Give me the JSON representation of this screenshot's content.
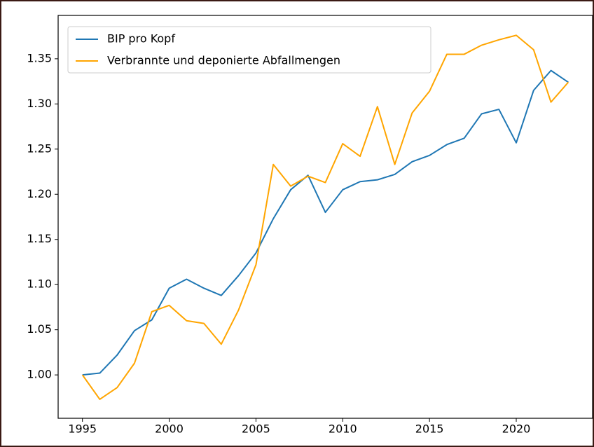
{
  "chart_data": {
    "type": "line",
    "x": [
      1995,
      1996,
      1997,
      1998,
      1999,
      2000,
      2001,
      2002,
      2003,
      2004,
      2005,
      2006,
      2007,
      2008,
      2009,
      2010,
      2011,
      2012,
      2013,
      2014,
      2015,
      2016,
      2017,
      2018,
      2019,
      2020,
      2021,
      2022,
      2023
    ],
    "series": [
      {
        "name": "BIP pro Kopf",
        "color": "#1f77b4",
        "values": [
          1.0,
          1.002,
          1.022,
          1.049,
          1.061,
          1.096,
          1.106,
          1.096,
          1.088,
          1.11,
          1.135,
          1.173,
          1.205,
          1.221,
          1.18,
          1.205,
          1.214,
          1.216,
          1.222,
          1.236,
          1.243,
          1.255,
          1.262,
          1.289,
          1.294,
          1.257,
          1.315,
          1.337,
          1.324
        ]
      },
      {
        "name": "Verbrannte und deponierte Abfallmengen",
        "color": "#ffa500",
        "values": [
          1.0,
          0.973,
          0.986,
          1.013,
          1.07,
          1.077,
          1.06,
          1.057,
          1.034,
          1.072,
          1.122,
          1.233,
          1.209,
          1.22,
          1.213,
          1.256,
          1.242,
          1.297,
          1.233,
          1.29,
          1.314,
          1.355,
          1.355,
          1.365,
          1.371,
          1.376,
          1.36,
          1.302,
          1.324
        ]
      }
    ],
    "xlim": [
      1993.6,
      2024.4
    ],
    "xticks": [
      1995,
      2000,
      2005,
      2010,
      2015,
      2020
    ],
    "ylim": [
      0.952,
      1.398
    ],
    "yticks": [
      {
        "value": 1.0,
        "label": "1.00"
      },
      {
        "value": 1.05,
        "label": "1.05"
      },
      {
        "value": 1.1,
        "label": "1.10"
      },
      {
        "value": 1.15,
        "label": "1.15"
      },
      {
        "value": 1.2,
        "label": "1.20"
      },
      {
        "value": 1.25,
        "label": "1.25"
      },
      {
        "value": 1.3,
        "label": "1.30"
      },
      {
        "value": 1.35,
        "label": "1.35"
      }
    ],
    "legend": "upper left",
    "grid": false
  }
}
